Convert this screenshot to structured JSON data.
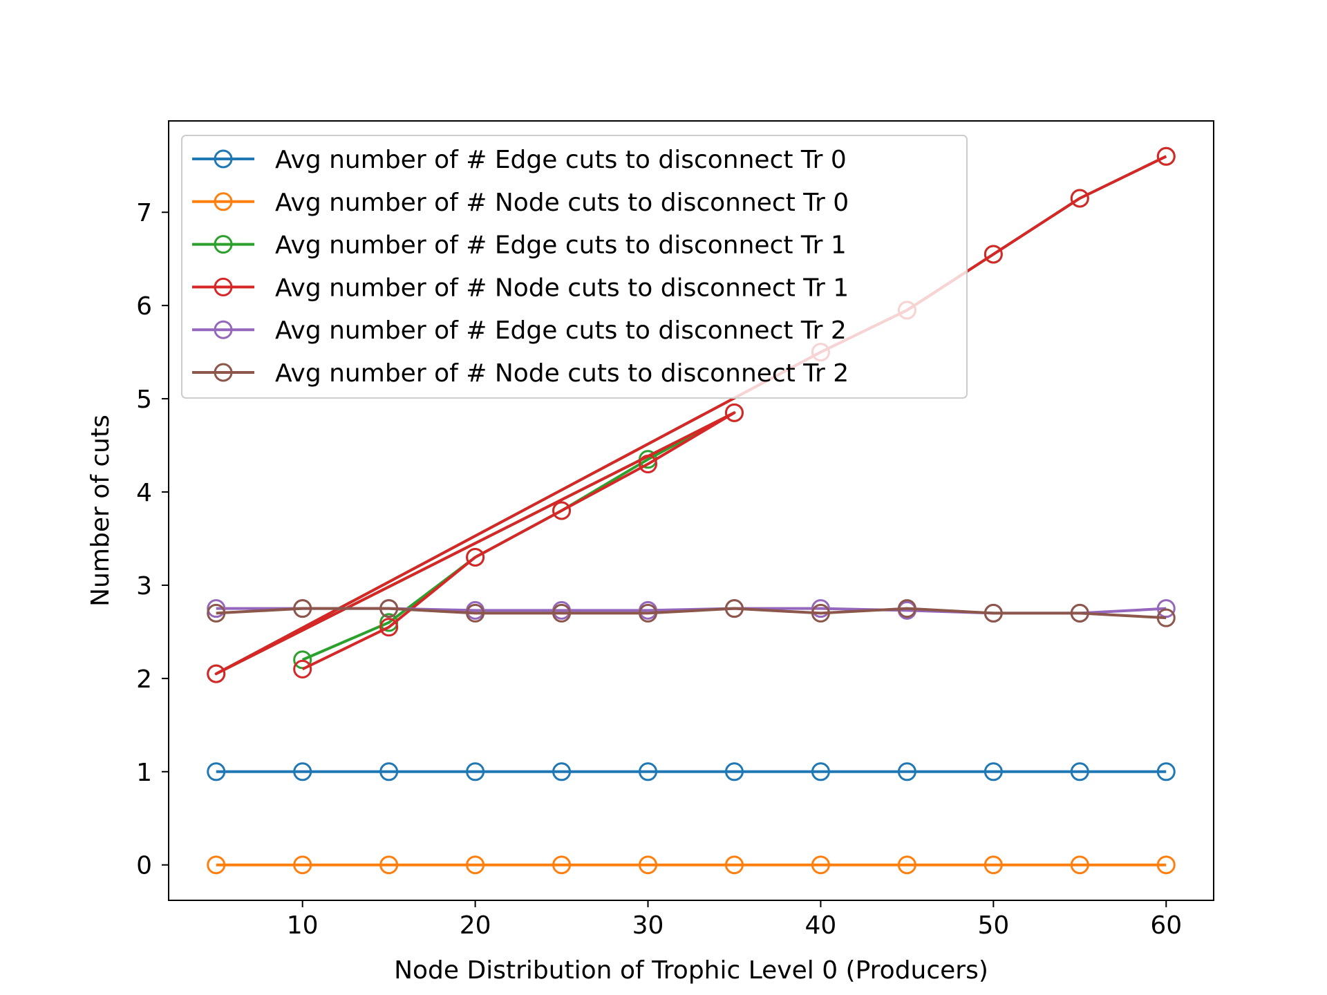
{
  "chart_data": {
    "type": "line",
    "title": "",
    "xlabel": "Node Distribution of Trophic Level 0 (Producers)",
    "ylabel": "Number of cuts",
    "xlim": [
      2.25,
      62.75
    ],
    "ylim": [
      -0.38,
      7.98
    ],
    "x_ticks": [
      10,
      20,
      30,
      40,
      50,
      60
    ],
    "y_ticks": [
      0,
      1,
      2,
      3,
      4,
      5,
      6,
      7
    ],
    "grid": false,
    "legend_position": "upper-left",
    "series": [
      {
        "name": "Avg number of # Edge cuts to disconnect Tr 0",
        "color": "#1f77b4",
        "x": [
          5,
          10,
          15,
          20,
          25,
          30,
          35,
          40,
          45,
          50,
          55,
          60
        ],
        "y": [
          1,
          1,
          1,
          1,
          1,
          1,
          1,
          1,
          1,
          1,
          1,
          1
        ]
      },
      {
        "name": "Avg number of # Node cuts to disconnect Tr 0",
        "color": "#ff7f0e",
        "x": [
          5,
          10,
          15,
          20,
          25,
          30,
          35,
          40,
          45,
          50,
          55,
          60
        ],
        "y": [
          0,
          0,
          0,
          0,
          0,
          0,
          0,
          0,
          0,
          0,
          0,
          0
        ]
      },
      {
        "name": "Avg number of # Edge cuts to disconnect Tr 1",
        "color": "#2ca02c",
        "x": [
          10,
          15,
          20,
          25,
          30,
          35,
          5,
          40,
          45,
          50,
          55,
          60
        ],
        "y": [
          2.2,
          2.6,
          3.3,
          3.8,
          4.35,
          4.85,
          2.05,
          5.5,
          5.95,
          6.55,
          7.15,
          7.6
        ]
      },
      {
        "name": "Avg number of # Node cuts to disconnect Tr 1",
        "color": "#d62728",
        "x": [
          10,
          15,
          20,
          25,
          30,
          35,
          5,
          40,
          45,
          50,
          55,
          60
        ],
        "y": [
          2.1,
          2.55,
          3.3,
          3.8,
          4.3,
          4.85,
          2.05,
          5.5,
          5.95,
          6.55,
          7.15,
          7.6
        ]
      },
      {
        "name": "Avg number of # Edge cuts to disconnect Tr 2",
        "color": "#9467bd",
        "x": [
          5,
          10,
          15,
          20,
          25,
          30,
          35,
          40,
          45,
          50,
          55,
          60
        ],
        "y": [
          2.75,
          2.75,
          2.75,
          2.73,
          2.73,
          2.73,
          2.75,
          2.75,
          2.73,
          2.7,
          2.7,
          2.75
        ]
      },
      {
        "name": "Avg number of # Node cuts to disconnect Tr 2",
        "color": "#8c564b",
        "x": [
          5,
          10,
          15,
          20,
          25,
          30,
          35,
          40,
          45,
          50,
          55,
          60
        ],
        "y": [
          2.7,
          2.75,
          2.75,
          2.7,
          2.7,
          2.7,
          2.75,
          2.7,
          2.75,
          2.7,
          2.7,
          2.65
        ]
      }
    ]
  }
}
